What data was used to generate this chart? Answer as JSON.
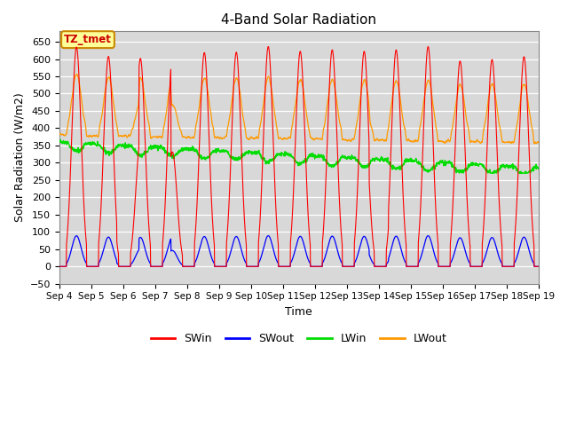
{
  "title": "4-Band Solar Radiation",
  "ylabel": "Solar Radiation (W/m2)",
  "xlabel": "Time",
  "ylim": [
    -50,
    680
  ],
  "yticks": [
    -50,
    0,
    50,
    100,
    150,
    200,
    250,
    300,
    350,
    400,
    450,
    500,
    550,
    600,
    650
  ],
  "colors": {
    "SWin": "#ff0000",
    "SWout": "#0000ff",
    "LWin": "#00dd00",
    "LWout": "#ff9900"
  },
  "annotation_label": "TZ_tmet",
  "annotation_bg": "#ffff99",
  "annotation_border": "#cc8800",
  "annotation_text_color": "#cc0000",
  "bg_color": "#d8d8d8",
  "n_days": 15,
  "start_day": 4,
  "pts_per_hour": 6,
  "legend_labels": [
    "SWin",
    "SWout",
    "LWin",
    "LWout"
  ]
}
